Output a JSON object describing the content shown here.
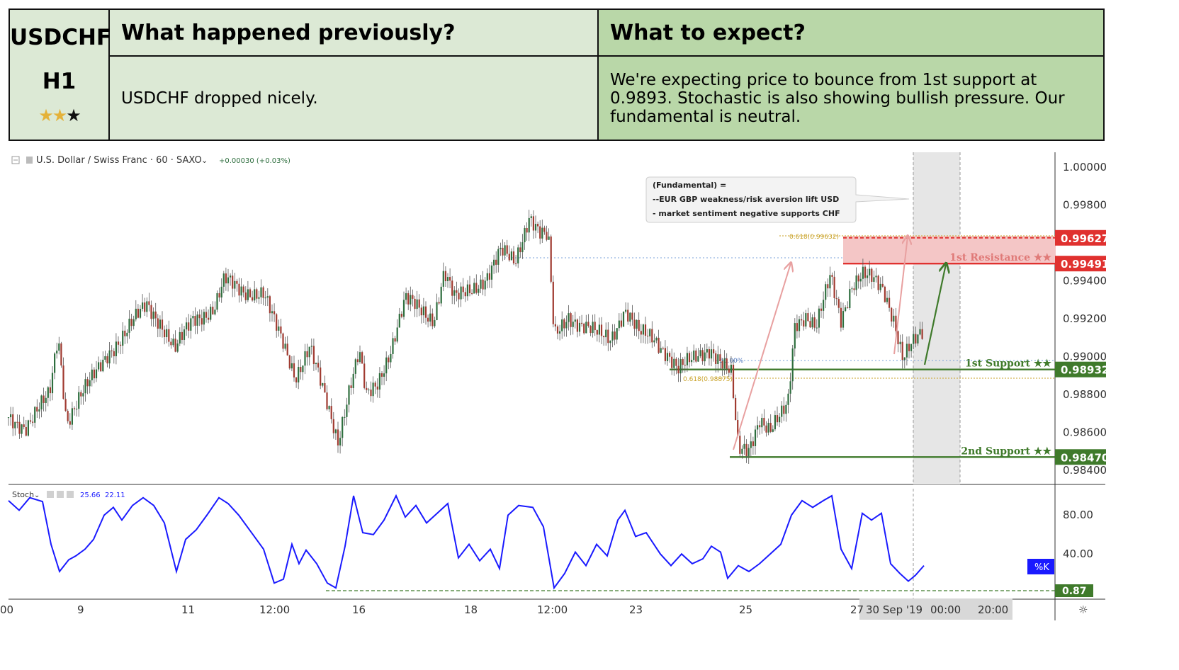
{
  "header": {
    "symbol": "USDCHF",
    "timeframe": "H1",
    "rating": {
      "filled": 2,
      "total": 3,
      "stars_filled": "★★",
      "stars_empty": "★"
    },
    "prev_title": "What happened previously?",
    "prev_text": "USDCHF dropped nicely.",
    "expect_title": "What to expect?",
    "expect_text": "We're expecting price to bounce from 1st support at 0.9893. Stochastic is also showing bullish pressure. Our fundamental is neutral."
  },
  "toolbar": {
    "instrument": "U.S. Dollar / Swiss Franc · 60 · SAXO",
    "change": "+0.00030 (+0.03%)"
  },
  "colors": {
    "resistance": "#e0312f",
    "support": "#3f7a2b",
    "stoch": "#1a1aff",
    "fib": "#c9a227",
    "bull": "#2e6e3e",
    "bear": "#a03a30"
  },
  "annotation": {
    "lines": [
      "(Fundamental) =",
      "--EUR GBP weakness/risk aversion lift USD",
      "- market sentiment negative supports CHF"
    ]
  },
  "chart_data": [
    {
      "type": "candlestick",
      "price_axis": {
        "ticks": [
          "1.00000",
          "0.99800",
          "0.99400",
          "0.99200",
          "0.99000",
          "0.98800",
          "0.98600",
          "0.98400"
        ],
        "ylim": [
          0.9836,
          1.0009
        ]
      },
      "time_axis": {
        "ticks": [
          "00",
          "9",
          "11",
          "12:00",
          "16",
          "18",
          "12:00",
          "23",
          "25",
          "27",
          "30 Sep '19",
          "00:00",
          "20:00"
        ]
      },
      "levels": [
        {
          "name": "1st Resistance ★★",
          "value": 0.99491,
          "label": "0.99491",
          "kind": "resistance"
        },
        {
          "name": "",
          "value": 0.99627,
          "label": "0.99627",
          "kind": "resistance"
        },
        {
          "name": "1st Support ★★",
          "value": 0.98932,
          "label": "0.98932",
          "kind": "support"
        },
        {
          "name": "2nd Support ★★",
          "value": 0.9847,
          "label": "0.98470",
          "kind": "support"
        }
      ],
      "fib_labels": [
        "0.618(0.99632)",
        "50.00%",
        "0.618(0.98875)"
      ],
      "price_path": [
        [
          0,
          0.9868
        ],
        [
          25,
          0.9863
        ],
        [
          45,
          0.9873
        ],
        [
          58,
          0.988
        ],
        [
          70,
          0.9912
        ],
        [
          82,
          0.9866
        ],
        [
          100,
          0.9878
        ],
        [
          118,
          0.9888
        ],
        [
          140,
          0.9902
        ],
        [
          165,
          0.9912
        ],
        [
          195,
          0.9928
        ],
        [
          215,
          0.9918
        ],
        [
          235,
          0.9903
        ],
        [
          260,
          0.992
        ],
        [
          290,
          0.9925
        ],
        [
          305,
          0.994
        ],
        [
          330,
          0.9935
        ],
        [
          360,
          0.9933
        ],
        [
          375,
          0.9918
        ],
        [
          390,
          0.9905
        ],
        [
          405,
          0.989
        ],
        [
          425,
          0.9905
        ],
        [
          445,
          0.988
        ],
        [
          465,
          0.9856
        ],
        [
          480,
          0.9882
        ],
        [
          495,
          0.9902
        ],
        [
          505,
          0.9878
        ],
        [
          520,
          0.9885
        ],
        [
          540,
          0.9905
        ],
        [
          560,
          0.993
        ],
        [
          580,
          0.9925
        ],
        [
          600,
          0.992
        ],
        [
          615,
          0.9945
        ],
        [
          630,
          0.993
        ],
        [
          650,
          0.9935
        ],
        [
          675,
          0.9942
        ],
        [
          695,
          0.9955
        ],
        [
          715,
          0.995
        ],
        [
          735,
          0.9975
        ],
        [
          750,
          0.9965
        ],
        [
          762,
          0.9962
        ],
        [
          770,
          0.991
        ],
        [
          790,
          0.9922
        ],
        [
          810,
          0.9916
        ],
        [
          830,
          0.9912
        ],
        [
          850,
          0.991
        ],
        [
          870,
          0.9925
        ],
        [
          890,
          0.9912
        ],
        [
          910,
          0.991
        ],
        [
          930,
          0.9902
        ],
        [
          945,
          0.9893
        ],
        [
          965,
          0.9898
        ],
        [
          990,
          0.9905
        ],
        [
          1010,
          0.9895
        ],
        [
          1020,
          0.989
        ],
        [
          1030,
          0.985
        ],
        [
          1045,
          0.9852
        ],
        [
          1060,
          0.9868
        ],
        [
          1075,
          0.986
        ],
        [
          1090,
          0.9868
        ],
        [
          1100,
          0.9875
        ],
        [
          1110,
          0.9918
        ],
        [
          1125,
          0.9922
        ],
        [
          1140,
          0.9915
        ],
        [
          1160,
          0.9942
        ],
        [
          1175,
          0.992
        ],
        [
          1190,
          0.9938
        ],
        [
          1205,
          0.9943
        ],
        [
          1220,
          0.994
        ],
        [
          1235,
          0.9935
        ],
        [
          1250,
          0.992
        ],
        [
          1262,
          0.99
        ],
        [
          1275,
          0.9906
        ],
        [
          1292,
          0.9912
        ]
      ]
    },
    {
      "type": "line",
      "name": "Stoch",
      "readings": [
        "25.66",
        "22.11"
      ],
      "y_axis": {
        "ticks": [
          "80.00",
          "40.00"
        ],
        "ylim": [
          0,
          100
        ]
      },
      "level_label": "0.87",
      "series_label": "%K",
      "x": [
        0,
        15,
        30,
        48,
        60,
        72,
        85,
        95,
        108,
        120,
        135,
        148,
        160,
        175,
        190,
        205,
        220,
        237,
        250,
        265,
        280,
        297,
        310,
        325,
        345,
        360,
        375,
        388,
        400,
        410,
        420,
        435,
        450,
        462,
        475,
        487,
        500,
        515,
        530,
        547,
        560,
        575,
        590,
        605,
        620,
        635,
        650,
        665,
        680,
        693,
        705,
        720,
        740,
        755,
        770,
        785,
        800,
        815,
        830,
        845,
        860,
        870,
        885,
        900,
        920,
        935,
        950,
        965,
        980,
        992,
        1005,
        1015,
        1030,
        1045,
        1060,
        1075,
        1090,
        1105,
        1120,
        1135,
        1150,
        1162,
        1175,
        1190,
        1205,
        1218,
        1232,
        1245,
        1258,
        1270,
        1280,
        1292
      ],
      "values": [
        95,
        85,
        98,
        94,
        50,
        22,
        34,
        38,
        45,
        55,
        80,
        88,
        75,
        90,
        98,
        90,
        72,
        22,
        55,
        65,
        80,
        98,
        92,
        80,
        60,
        45,
        10,
        14,
        50,
        30,
        44,
        30,
        10,
        5,
        48,
        100,
        62,
        60,
        75,
        100,
        78,
        90,
        72,
        82,
        92,
        36,
        50,
        33,
        45,
        25,
        80,
        90,
        88,
        68,
        5,
        20,
        42,
        28,
        50,
        38,
        75,
        85,
        58,
        62,
        40,
        28,
        40,
        30,
        35,
        48,
        42,
        15,
        28,
        22,
        30,
        40,
        50,
        80,
        95,
        88,
        95,
        100,
        45,
        25,
        82,
        75,
        82,
        30,
        20,
        12,
        18,
        28
      ]
    }
  ]
}
